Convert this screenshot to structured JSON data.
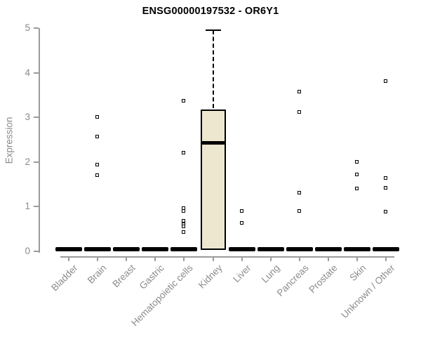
{
  "colors": {
    "background": "#ffffff",
    "title_text": "#000000",
    "axis_text": "#8b8b8b",
    "axis_line": "#9b9b9b",
    "box_fill": "#ede7cf",
    "box_border": "#000000",
    "median": "#000000",
    "outlier_border": "#000000",
    "outlier_fill": "#ffffff"
  },
  "chart_data": {
    "type": "boxplot",
    "title": "ENSG00000197532 - OR6Y1",
    "xlabel": "",
    "ylabel": "Expression",
    "ylim": [
      0,
      5
    ],
    "yticks": [
      0,
      1,
      2,
      3,
      4,
      5
    ],
    "grid": false,
    "legend": null,
    "marker": "open-square",
    "categories": [
      "Bladder",
      "Brain",
      "Breast",
      "Gastric",
      "Hematopoietic cells",
      "Kidney",
      "Liver",
      "Lung",
      "Pancreas",
      "Prostate",
      "Skin",
      "Unknown / Other"
    ],
    "boxes": [
      {
        "category": "Bladder",
        "q1": 0,
        "median": 0,
        "q3": 0,
        "whisker_low": 0,
        "whisker_high": 0,
        "outliers": []
      },
      {
        "category": "Brain",
        "q1": 0,
        "median": 0,
        "q3": 0,
        "whisker_low": 0,
        "whisker_high": 0,
        "outliers": [
          3.0,
          2.57,
          1.93,
          1.7
        ]
      },
      {
        "category": "Breast",
        "q1": 0,
        "median": 0,
        "q3": 0,
        "whisker_low": 0,
        "whisker_high": 0,
        "outliers": []
      },
      {
        "category": "Gastric",
        "q1": 0,
        "median": 0,
        "q3": 0,
        "whisker_low": 0,
        "whisker_high": 0,
        "outliers": []
      },
      {
        "category": "Hematopoietic cells",
        "q1": 0,
        "median": 0,
        "q3": 0,
        "whisker_low": 0,
        "whisker_high": 0,
        "outliers": [
          3.37,
          2.2,
          0.96,
          0.9,
          0.68,
          0.6,
          0.55,
          0.42
        ]
      },
      {
        "category": "Kidney",
        "q1": 0.03,
        "median": 2.43,
        "q3": 3.17,
        "whisker_low": 0.03,
        "whisker_high": 4.95,
        "outliers": []
      },
      {
        "category": "Liver",
        "q1": 0,
        "median": 0,
        "q3": 0,
        "whisker_low": 0,
        "whisker_high": 0,
        "outliers": [
          0.9,
          0.63
        ]
      },
      {
        "category": "Lung",
        "q1": 0,
        "median": 0,
        "q3": 0,
        "whisker_low": 0,
        "whisker_high": 0,
        "outliers": []
      },
      {
        "category": "Pancreas",
        "q1": 0,
        "median": 0,
        "q3": 0,
        "whisker_low": 0,
        "whisker_high": 0,
        "outliers": [
          3.57,
          3.12,
          1.3,
          0.9
        ]
      },
      {
        "category": "Prostate",
        "q1": 0,
        "median": 0,
        "q3": 0,
        "whisker_low": 0,
        "whisker_high": 0,
        "outliers": []
      },
      {
        "category": "Skin",
        "q1": 0,
        "median": 0,
        "q3": 0,
        "whisker_low": 0,
        "whisker_high": 0,
        "outliers": [
          2.0,
          1.72,
          1.4
        ]
      },
      {
        "category": "Unknown / Other",
        "q1": 0,
        "median": 0,
        "q3": 0,
        "whisker_low": 0,
        "whisker_high": 0,
        "outliers": [
          3.8,
          1.63,
          1.42,
          0.88
        ]
      }
    ]
  }
}
